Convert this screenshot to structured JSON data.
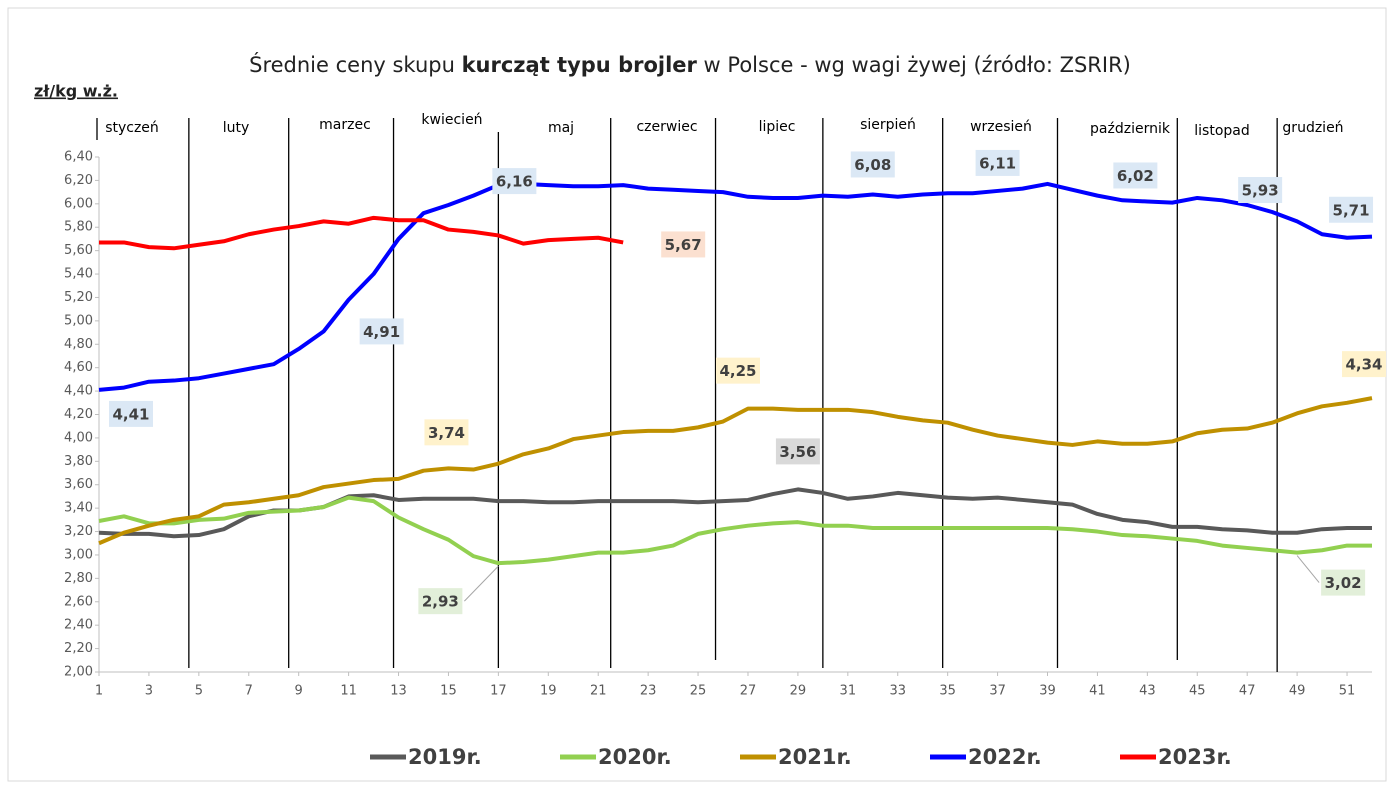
{
  "chart_data": {
    "type": "line",
    "title": [
      "Średnie ceny skupu ",
      "kurcząt typu brojler",
      " w Polsce - wg wagi żywej (źródło: ZSRIR)"
    ],
    "y_axis_label": "zł/kg w.ż.",
    "months": [
      "styczeń",
      "luty",
      "marzec",
      "kwiecień",
      "maj",
      "czerwiec",
      "lipiec",
      "sierpień",
      "wrzesień",
      "październik",
      "listopad",
      "grudzień"
    ],
    "x": [
      1,
      2,
      3,
      4,
      5,
      6,
      7,
      8,
      9,
      10,
      11,
      12,
      13,
      14,
      15,
      16,
      17,
      18,
      19,
      20,
      21,
      22,
      23,
      24,
      25,
      26,
      27,
      28,
      29,
      30,
      31,
      32,
      33,
      34,
      35,
      36,
      37,
      38,
      39,
      40,
      41,
      42,
      43,
      44,
      45,
      46,
      47,
      48,
      49,
      50,
      51,
      52
    ],
    "xlim": [
      1,
      52
    ],
    "xticks": [
      1,
      3,
      5,
      7,
      9,
      11,
      13,
      15,
      17,
      19,
      21,
      23,
      25,
      27,
      29,
      31,
      33,
      35,
      37,
      39,
      41,
      43,
      45,
      47,
      49,
      51
    ],
    "ylim": [
      2.0,
      6.4
    ],
    "yticks": [
      {
        "value": 2.0,
        "label": "2,00"
      },
      {
        "value": 2.2,
        "label": "2,20"
      },
      {
        "value": 2.4,
        "label": "2,40"
      },
      {
        "value": 2.6,
        "label": "2,60"
      },
      {
        "value": 2.8,
        "label": "2,80"
      },
      {
        "value": 3.0,
        "label": "3,00"
      },
      {
        "value": 3.2,
        "label": "3,20"
      },
      {
        "value": 3.4,
        "label": "3,40"
      },
      {
        "value": 3.6,
        "label": "3,60"
      },
      {
        "value": 3.8,
        "label": "3,80"
      },
      {
        "value": 4.0,
        "label": "4,00"
      },
      {
        "value": 4.2,
        "label": "4,20"
      },
      {
        "value": 4.4,
        "label": "4,40"
      },
      {
        "value": 4.6,
        "label": "4,60"
      },
      {
        "value": 4.8,
        "label": "4,80"
      },
      {
        "value": 5.0,
        "label": "5,00"
      },
      {
        "value": 5.2,
        "label": "5,20"
      },
      {
        "value": 5.4,
        "label": "5,40"
      },
      {
        "value": 5.6,
        "label": "5,60"
      },
      {
        "value": 5.8,
        "label": "5,80"
      },
      {
        "value": 6.0,
        "label": "6,00"
      },
      {
        "value": 6.2,
        "label": "6,20"
      },
      {
        "value": 6.4,
        "label": "6,40"
      }
    ],
    "legend": "bottom",
    "series": [
      {
        "name": "2019r.",
        "color": "#595959",
        "label_color": "#d9d9d9",
        "values": [
          3.19,
          3.18,
          3.18,
          3.16,
          3.17,
          3.22,
          3.33,
          3.38,
          3.38,
          3.41,
          3.5,
          3.51,
          3.47,
          3.48,
          3.48,
          3.48,
          3.46,
          3.46,
          3.45,
          3.45,
          3.46,
          3.46,
          3.46,
          3.46,
          3.45,
          3.46,
          3.47,
          3.52,
          3.56,
          3.53,
          3.48,
          3.5,
          3.53,
          3.51,
          3.49,
          3.48,
          3.49,
          3.47,
          3.45,
          3.43,
          3.35,
          3.3,
          3.28,
          3.24,
          3.24,
          3.22,
          3.21,
          3.19,
          3.19,
          3.22,
          3.23,
          3.23
        ],
        "value_labels": [
          null,
          null,
          null,
          null,
          null,
          null,
          null,
          null,
          null,
          null,
          null,
          null,
          null,
          null,
          null,
          null,
          null,
          null,
          null,
          null,
          null,
          null,
          null,
          null,
          null,
          null,
          null,
          null,
          "3,56",
          null,
          null,
          null,
          null,
          null,
          null,
          null,
          null,
          null,
          null,
          null,
          null,
          null,
          null,
          null,
          null,
          null,
          null,
          null,
          null,
          null,
          null,
          null
        ]
      },
      {
        "name": "2020r.",
        "color": "#92d050",
        "label_color": "#e2efd9",
        "values": [
          3.29,
          3.33,
          3.27,
          3.27,
          3.3,
          3.31,
          3.36,
          3.37,
          3.38,
          3.41,
          3.49,
          3.46,
          3.32,
          3.22,
          3.13,
          2.99,
          2.93,
          2.94,
          2.96,
          2.99,
          3.02,
          3.02,
          3.04,
          3.08,
          3.18,
          3.22,
          3.25,
          3.27,
          3.28,
          3.25,
          3.25,
          3.23,
          3.23,
          3.23,
          3.23,
          3.23,
          3.23,
          3.23,
          3.23,
          3.22,
          3.2,
          3.17,
          3.16,
          3.14,
          3.12,
          3.08,
          3.06,
          3.04,
          3.02,
          3.04,
          3.08,
          3.08
        ],
        "value_labels": [
          null,
          null,
          null,
          null,
          null,
          null,
          null,
          null,
          null,
          null,
          null,
          null,
          null,
          null,
          null,
          null,
          "2,93",
          null,
          null,
          null,
          null,
          null,
          null,
          null,
          null,
          null,
          null,
          null,
          null,
          null,
          null,
          null,
          null,
          null,
          null,
          null,
          null,
          null,
          null,
          null,
          null,
          null,
          null,
          null,
          null,
          null,
          null,
          null,
          "3,02",
          null,
          null,
          null
        ]
      },
      {
        "name": "2021r.",
        "color": "#bf9000",
        "label_color": "#fff2cc",
        "values": [
          3.1,
          3.19,
          3.25,
          3.3,
          3.33,
          3.43,
          3.45,
          3.48,
          3.51,
          3.58,
          3.61,
          3.64,
          3.65,
          3.72,
          3.74,
          3.73,
          3.78,
          3.86,
          3.91,
          3.99,
          4.02,
          4.05,
          4.06,
          4.06,
          4.09,
          4.14,
          4.25,
          4.25,
          4.24,
          4.24,
          4.24,
          4.22,
          4.18,
          4.15,
          4.13,
          4.07,
          4.02,
          3.99,
          3.96,
          3.94,
          3.97,
          3.95,
          3.95,
          3.97,
          4.04,
          4.07,
          4.08,
          4.13,
          4.21,
          4.27,
          4.3,
          4.34
        ],
        "value_labels": [
          null,
          null,
          null,
          null,
          null,
          null,
          null,
          null,
          null,
          null,
          null,
          null,
          null,
          null,
          "3,74",
          null,
          null,
          null,
          null,
          null,
          null,
          null,
          null,
          null,
          null,
          null,
          "4,25",
          null,
          null,
          null,
          null,
          null,
          null,
          null,
          null,
          null,
          null,
          null,
          null,
          null,
          null,
          null,
          null,
          null,
          null,
          null,
          null,
          null,
          null,
          null,
          null,
          "4,34"
        ]
      },
      {
        "name": "2022r.",
        "color": "#0000ff",
        "label_color": "#dbe8f5",
        "values": [
          4.41,
          4.43,
          4.48,
          4.49,
          4.51,
          4.55,
          4.59,
          4.63,
          4.76,
          4.91,
          5.18,
          5.4,
          5.7,
          5.92,
          5.99,
          6.07,
          6.16,
          6.17,
          6.16,
          6.15,
          6.15,
          6.16,
          6.13,
          6.12,
          6.11,
          6.1,
          6.06,
          6.05,
          6.05,
          6.07,
          6.06,
          6.08,
          6.06,
          6.08,
          6.09,
          6.09,
          6.11,
          6.13,
          6.17,
          6.12,
          6.07,
          6.03,
          6.02,
          6.01,
          6.05,
          6.03,
          5.99,
          5.93,
          5.85,
          5.74,
          5.71,
          5.72
        ],
        "value_labels": [
          "4,41",
          null,
          null,
          null,
          null,
          null,
          null,
          null,
          null,
          "4,91",
          null,
          null,
          null,
          null,
          null,
          null,
          "6,16",
          null,
          null,
          null,
          null,
          null,
          null,
          null,
          null,
          null,
          null,
          null,
          null,
          null,
          null,
          "6,08",
          null,
          null,
          null,
          null,
          "6,11",
          null,
          null,
          null,
          null,
          null,
          "6,02",
          null,
          null,
          null,
          null,
          "5,93",
          null,
          null,
          "5,71",
          null
        ]
      },
      {
        "name": "2023r.",
        "color": "#ff0000",
        "label_color": "#fbe0d0",
        "values": [
          5.67,
          5.67,
          5.63,
          5.62,
          5.65,
          5.68,
          5.74,
          5.78,
          5.81,
          5.85,
          5.83,
          5.88,
          5.86,
          5.86,
          5.78,
          5.76,
          5.73,
          5.66,
          5.69,
          5.7,
          5.71,
          5.67,
          null,
          null,
          null,
          null,
          null,
          null,
          null,
          null,
          null,
          null,
          null,
          null,
          null,
          null,
          null,
          null,
          null,
          null,
          null,
          null,
          null,
          null,
          null,
          null,
          null,
          null,
          null,
          null,
          null,
          null
        ],
        "value_labels": [
          null,
          null,
          null,
          null,
          null,
          null,
          null,
          null,
          null,
          null,
          null,
          null,
          null,
          null,
          null,
          null,
          null,
          null,
          null,
          null,
          null,
          "5,67",
          null,
          null,
          null,
          null,
          null,
          null,
          null,
          null,
          null,
          null,
          null,
          null,
          null,
          null,
          null,
          null,
          null,
          null,
          null,
          null,
          null,
          null,
          null,
          null,
          null,
          null,
          null,
          null,
          null,
          null
        ]
      }
    ]
  }
}
